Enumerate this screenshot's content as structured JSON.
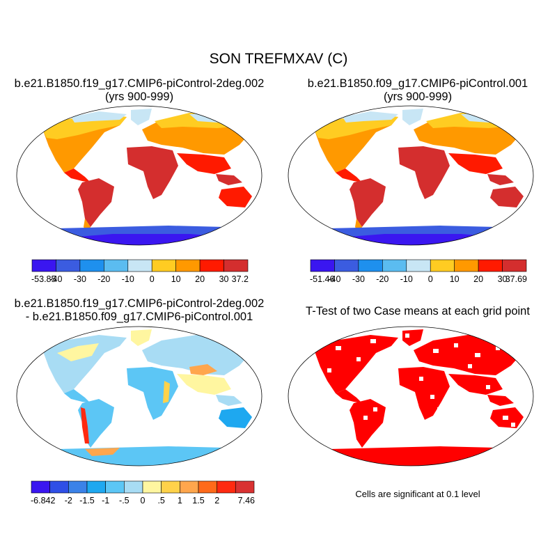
{
  "main_title": "SON TREFMXAV (C)",
  "panels": [
    {
      "title_line1": "b.e21.B1850.f19_g17.CMIP6-piControl-2deg.002",
      "title_line2": "(yrs 900-999)"
    },
    {
      "title_line1": "b.e21.B1850.f09_g17.CMIP6-piControl.001",
      "title_line2": "(yrs 900-999)"
    },
    {
      "title_line1": "b.e21.B1850.f19_g17.CMIP6-piControl-2deg.002",
      "title_line2": "- b.e21.B1850.f09_g17.CMIP6-piControl.001"
    },
    {
      "title_line1": "T-Test of two Case means at each grid point",
      "title_line2": ""
    }
  ],
  "colorbars": [
    {
      "colors": [
        "#3a16f0",
        "#3b5ce0",
        "#1e90ee",
        "#5bbcf0",
        "#c8e6f5",
        "#ffcc22",
        "#ff9900",
        "#ff1a00",
        "#d42e2e"
      ],
      "labels": [
        "-53.85",
        "-40",
        "-30",
        "-20",
        "-10",
        "0",
        "10",
        "20",
        "30",
        "37.2"
      ]
    },
    {
      "colors": [
        "#3a16f0",
        "#3b5ce0",
        "#1e90ee",
        "#5bbcf0",
        "#c8e6f5",
        "#ffcc22",
        "#ff9900",
        "#ff1a00",
        "#d42e2e"
      ],
      "labels": [
        "-51.46",
        "-40",
        "-30",
        "-20",
        "-10",
        "0",
        "10",
        "20",
        "30",
        "37.69"
      ]
    },
    {
      "colors": [
        "#3a16f0",
        "#2f4fe6",
        "#3b82e8",
        "#1ea8f0",
        "#5cc6f5",
        "#a8dcf4",
        "#fff6a0",
        "#ffd24a",
        "#ffa64d",
        "#ff6a1a",
        "#ff2a10",
        "#d93232"
      ],
      "labels": [
        "-6.842",
        "",
        "-2",
        "-1.5",
        "-1",
        "-.5",
        "0",
        ".5",
        "1",
        "1.5",
        "2",
        "",
        "7.46"
      ]
    }
  ],
  "significance_note": "Cells are significant at 0.1 level"
}
